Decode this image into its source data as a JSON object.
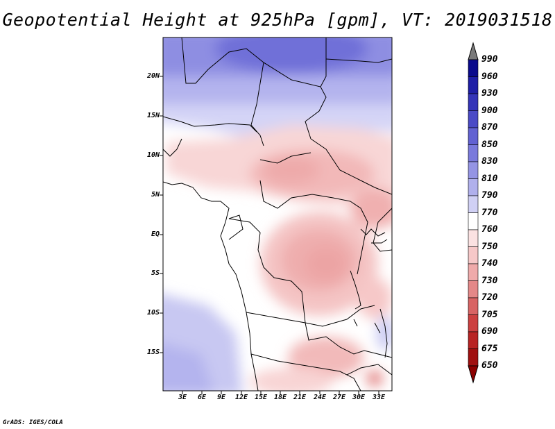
{
  "title": "Geopotential Height at 925hPa [gpm], VT: 2019031518",
  "credit": "GrADS: IGES/COLA",
  "variable": "Geopotential Height",
  "level": "925hPa",
  "units": "gpm",
  "valid_time": "2019031518",
  "map": {
    "lat_ticks": [
      "20N",
      "15N",
      "10N",
      "5N",
      "EQ",
      "5S",
      "10S",
      "15S"
    ],
    "lon_ticks": [
      "3E",
      "6E",
      "9E",
      "12E",
      "15E",
      "18E",
      "21E",
      "24E",
      "27E",
      "30E",
      "33E"
    ],
    "region": "Central Africa",
    "lat_range": [
      -20,
      25
    ],
    "lon_range": [
      0,
      35
    ]
  },
  "colorbar": {
    "levels": [
      "990",
      "960",
      "930",
      "900",
      "870",
      "850",
      "830",
      "810",
      "790",
      "770",
      "760",
      "750",
      "740",
      "730",
      "720",
      "705",
      "690",
      "675",
      "650"
    ],
    "colors": [
      "#7a7a7a",
      "#0a0a8c",
      "#1e1ea6",
      "#3434b8",
      "#4a4ac6",
      "#6262d2",
      "#7a7adc",
      "#9494e4",
      "#b0b0ec",
      "#d0d0f4",
      "#ffffff",
      "#fbe2e2",
      "#f6c8c8",
      "#efaaaa",
      "#e48888",
      "#d86464",
      "#cc4040",
      "#b82424",
      "#a01010",
      "#8c0000"
    ]
  }
}
